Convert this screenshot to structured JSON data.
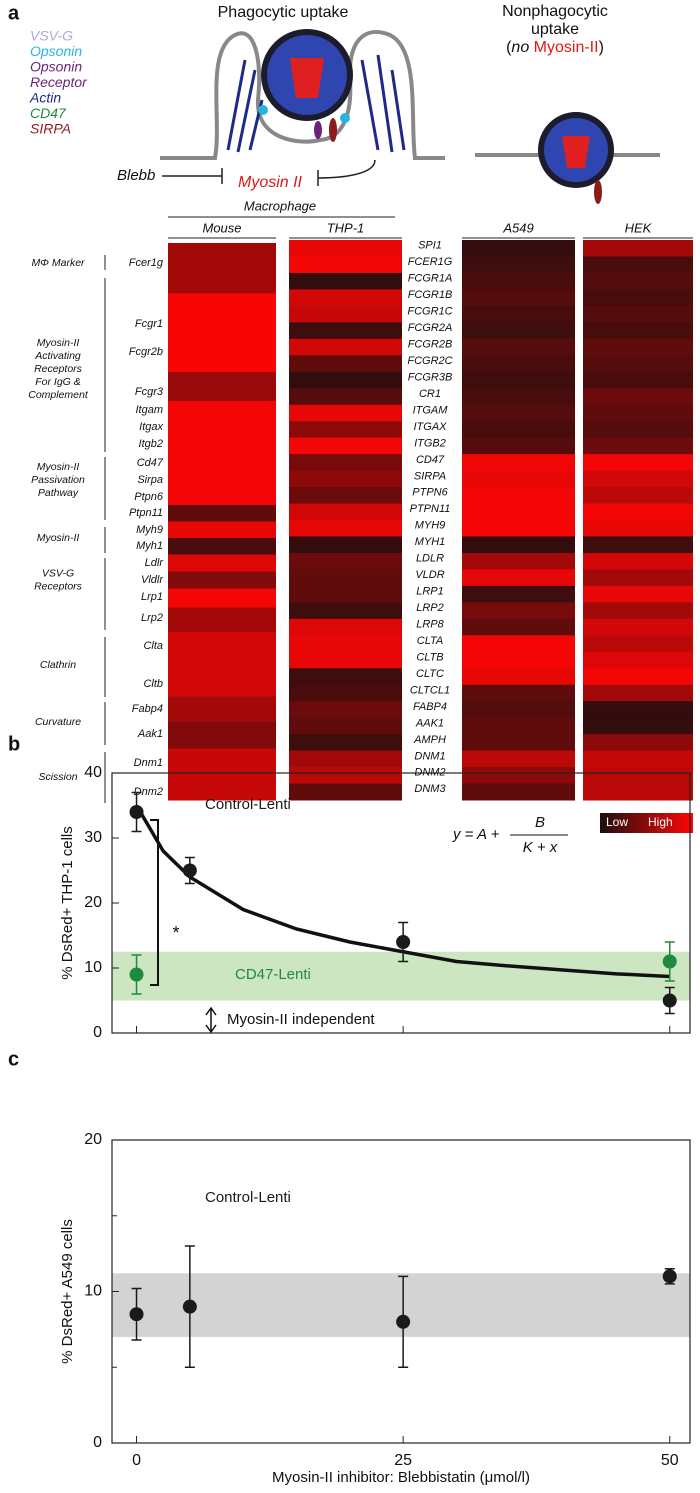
{
  "panel_labels": [
    "a",
    "b",
    "c"
  ],
  "diagram": {
    "phagocytic_title": "Phagocytic uptake",
    "nonphagocytic_title": [
      "Nonphagocytic",
      "uptake"
    ],
    "nonphagocytic_note": {
      "prefix": "(",
      "no": "no",
      "myosin": "Myosin-II",
      "suffix": ")"
    },
    "legend": [
      {
        "lines": [
          "VSV-G"
        ],
        "color": "#b3a6d9"
      },
      {
        "lines": [
          "Opsonin"
        ],
        "color": "#27b4e0"
      },
      {
        "lines": [
          "Opsonin",
          "Receptor"
        ],
        "color": "#6d237c"
      },
      {
        "lines": [
          "Actin"
        ],
        "color": "#1f2a86"
      },
      {
        "lines": [
          "CD47"
        ],
        "color": "#1e8a3c"
      },
      {
        "lines": [
          "SIRPA"
        ],
        "color": "#8e1b1b"
      }
    ],
    "inhibitor": "Blebb",
    "motor": "Myosin II"
  },
  "heatmap": {
    "group_header": "Macrophage",
    "mouse_genes": [
      "Fcer1g",
      "Fcgr1",
      "Fcgr2b",
      "Fcgr3",
      "Itgam",
      "Itgax",
      "Itgb2",
      "Cd47",
      "Sirpa",
      "Ptpn6",
      "Ptpn11",
      "Myh9",
      "Myh1",
      "Ldlr",
      "Vldlr",
      "Lrp1",
      "Lrp2",
      "Clta",
      "Cltb",
      "Fabp4",
      "Aak1",
      "Dnm1",
      "Dnm2"
    ],
    "human_genes": [
      "SPI1",
      "FCER1G",
      "FCGR1A",
      "FCGR1B",
      "FCGR1C",
      "FCGR2A",
      "FCGR2B",
      "FCGR2C",
      "FCGR3B",
      "CR1",
      "ITGAM",
      "ITGAX",
      "ITGB2",
      "CD47",
      "SIRPA",
      "PTPN6",
      "PTPN11",
      "MYH9",
      "MYH1",
      "LDLR",
      "VLDR",
      "LRP1",
      "LRP2",
      "LRP8",
      "CLTA",
      "CLTB",
      "CLTC",
      "CLTCL1",
      "FABP4",
      "AAK1",
      "AMPH",
      "DNM1",
      "DNM2",
      "DNM3"
    ],
    "groups": [
      {
        "lines": [
          "MΦ Marker"
        ]
      },
      {
        "lines": [
          "Myosin-II",
          "Activating",
          "Receptors",
          "For IgG &",
          "Complement"
        ]
      },
      {
        "lines": [
          "Myosin-II",
          "Passivation",
          "Pathway"
        ]
      },
      {
        "lines": [
          "Myosin-II"
        ]
      },
      {
        "lines": [
          "VSV-G",
          "Receptors"
        ]
      },
      {
        "lines": [
          "Clathrin"
        ]
      },
      {
        "lines": [
          "Curvature"
        ]
      },
      {
        "lines": [
          "Scission"
        ]
      }
    ],
    "samples": [
      {
        "name": "Mouse",
        "values": [
          0.6,
          0.97,
          0.97,
          0.55,
          0.95,
          0.95,
          0.95,
          0.95,
          0.95,
          0.95,
          0.3,
          0.9,
          0.2,
          0.85,
          0.45,
          0.95,
          0.6,
          0.8,
          0.8,
          0.6,
          0.45,
          0.75,
          0.75
        ]
      },
      {
        "name": "THP-1",
        "values": [
          0.9,
          0.95,
          0.1,
          0.8,
          0.75,
          0.15,
          0.8,
          0.3,
          0.1,
          0.25,
          0.9,
          0.5,
          0.95,
          0.4,
          0.5,
          0.35,
          0.8,
          0.9,
          0.1,
          0.35,
          0.3,
          0.3,
          0.15,
          0.85,
          0.9,
          0.9,
          0.15,
          0.2,
          0.35,
          0.3,
          0.15,
          0.6,
          0.7,
          0.3
        ]
      },
      {
        "name": "A549",
        "values": [
          0.1,
          0.15,
          0.2,
          0.25,
          0.2,
          0.15,
          0.25,
          0.2,
          0.15,
          0.2,
          0.25,
          0.2,
          0.25,
          0.95,
          0.9,
          0.95,
          0.95,
          0.95,
          0.1,
          0.6,
          0.9,
          0.15,
          0.4,
          0.3,
          0.95,
          0.95,
          0.9,
          0.3,
          0.25,
          0.3,
          0.3,
          0.7,
          0.5,
          0.3
        ]
      },
      {
        "name": "HEK",
        "values": [
          0.6,
          0.2,
          0.25,
          0.2,
          0.25,
          0.2,
          0.3,
          0.25,
          0.2,
          0.35,
          0.3,
          0.25,
          0.35,
          0.95,
          0.8,
          0.7,
          0.95,
          0.9,
          0.15,
          0.8,
          0.6,
          0.9,
          0.6,
          0.8,
          0.7,
          0.85,
          0.95,
          0.6,
          0.1,
          0.1,
          0.5,
          0.75,
          0.7,
          0.7
        ]
      }
    ],
    "scale": {
      "low": "Low",
      "high": "High",
      "range": [
        0,
        1
      ]
    }
  },
  "chart_data": [
    {
      "type": "scatter",
      "ylabel": "% DsRed+ THP-1 cells",
      "xlim": [
        -2.3,
        51.9
      ],
      "xticks": [
        0,
        25,
        50
      ],
      "ylim": [
        0,
        40
      ],
      "yticks": [
        0,
        10,
        20,
        30,
        40
      ],
      "series": [
        {
          "name": "Control-Lenti",
          "color": "#1a1a1a",
          "x": [
            0,
            5,
            25,
            50
          ],
          "values": [
            34,
            25,
            14,
            5
          ],
          "errors": [
            3,
            2,
            3,
            2
          ]
        },
        {
          "name": "CD47-Lenti",
          "color": "#1e8a3c",
          "x": [
            0,
            50
          ],
          "values": [
            9,
            11
          ],
          "errors": [
            3,
            3
          ]
        }
      ],
      "bands": [
        {
          "range": [
            5,
            12.5
          ],
          "color": "#cde6c2"
        }
      ],
      "fit": {
        "x": [
          0,
          2.5,
          5,
          10,
          15,
          20,
          25,
          30,
          35,
          40,
          45,
          50
        ],
        "values": [
          35,
          28,
          24,
          19,
          16,
          14,
          12.5,
          11,
          10.3,
          9.7,
          9.1,
          8.7
        ]
      },
      "equation": {
        "lhs": "y = A +",
        "numerator": "B",
        "denominator": "K + x"
      },
      "annotations": [
        "*",
        "Myosin-II independent"
      ]
    },
    {
      "type": "scatter",
      "ylabel": "% DsRed+ A549 cells",
      "xlabel": "Myosin-II inhibitor: Blebbistatin (μmol/l)",
      "xlim": [
        -2.3,
        51.9
      ],
      "xticks": [
        0,
        25,
        50
      ],
      "ylim": [
        0,
        20
      ],
      "yticks": [
        0,
        10,
        20
      ],
      "minor_yticks": [
        5,
        15
      ],
      "series": [
        {
          "name": "Control-Lenti",
          "color": "#1a1a1a",
          "x": [
            0,
            5,
            25,
            50
          ],
          "values": [
            8.5,
            9,
            8,
            11
          ],
          "errors": [
            1.7,
            4,
            3,
            0.5
          ]
        }
      ],
      "bands": [
        {
          "range": [
            7,
            11.2
          ],
          "color": "#d3d3d3"
        }
      ]
    }
  ]
}
